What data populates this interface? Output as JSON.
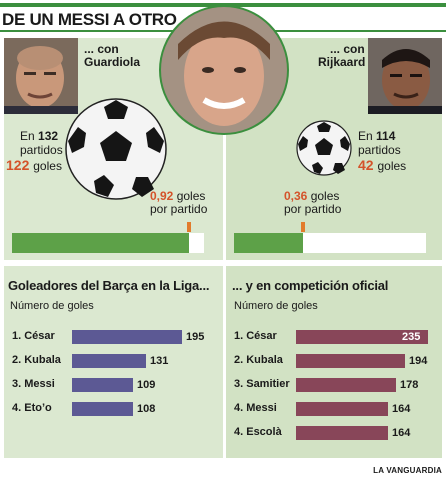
{
  "title": "DE UN MESSI A OTRO",
  "colors": {
    "green_bar": "#5da148",
    "orange_marker": "#e27b2c",
    "red_text": "#d4532a",
    "purple_bars": "#5c5994",
    "maroon_bars": "#884659"
  },
  "left": {
    "coach_caption_line1": "... con",
    "coach_caption_line2": "Guardiola",
    "stats_line1_prefix": "En",
    "stats_matches": "132",
    "stats_line2": "partidos",
    "stats_goals": "122",
    "stats_goals_label": "goles",
    "ratio_value": "0,92",
    "ratio_label_suffix": "goles",
    "ratio_line2": "por partido",
    "ratio_fraction": 0.92
  },
  "right": {
    "coach_caption_line1": "... con",
    "coach_caption_line2": "Rijkaard",
    "stats_line1_prefix": "En",
    "stats_matches": "114",
    "stats_line2": "partidos",
    "stats_goals": "42",
    "stats_goals_label": "goles",
    "ratio_value": "0,36",
    "ratio_label_suffix": "goles",
    "ratio_line2": "por partido",
    "ratio_fraction": 0.36
  },
  "chart_data": [
    {
      "type": "bar",
      "title": "Goleadores del Barça en la Liga...",
      "subtitle": "Número de goles",
      "categories": [
        "1. César",
        "2. Kubala",
        "3. Messi",
        "4. Eto’o"
      ],
      "values": [
        195,
        131,
        109,
        108
      ],
      "xlim": [
        0,
        195
      ]
    },
    {
      "type": "bar",
      "title": "... y en competición oficial",
      "subtitle": "Número de goles",
      "categories": [
        "1. César",
        "2. Kubala",
        "3. Samitier",
        "4. Messi",
        "4. Escolà"
      ],
      "values": [
        235,
        194,
        178,
        164,
        164
      ],
      "xlim": [
        0,
        235
      ]
    }
  ],
  "source": "LA VANGUARDIA"
}
